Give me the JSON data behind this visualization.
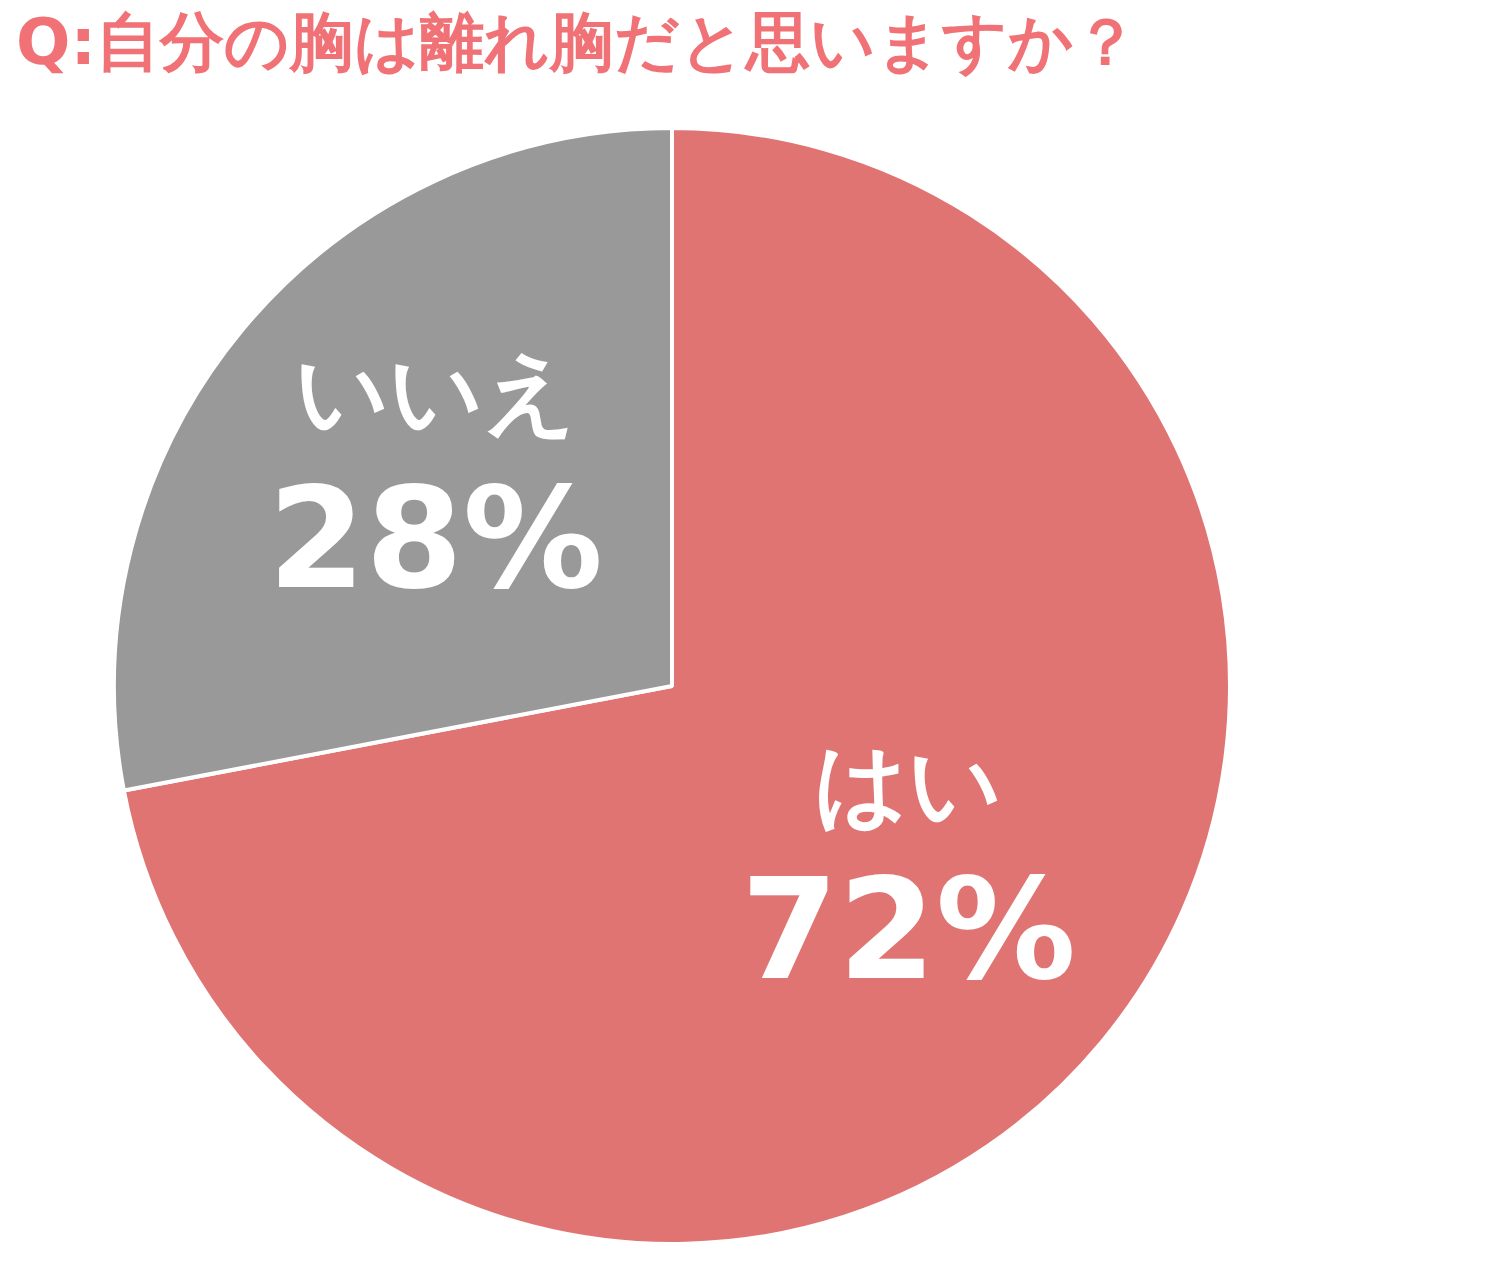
{
  "chart_data": {
    "type": "pie",
    "title": "Q:自分の胸は離れ胸だと思いますか？",
    "categories": [
      "はい",
      "いいえ"
    ],
    "values": [
      72,
      28
    ],
    "colors": [
      "#e07473",
      "#999999"
    ],
    "value_labels": [
      "72%",
      "28%"
    ],
    "legend": false
  }
}
